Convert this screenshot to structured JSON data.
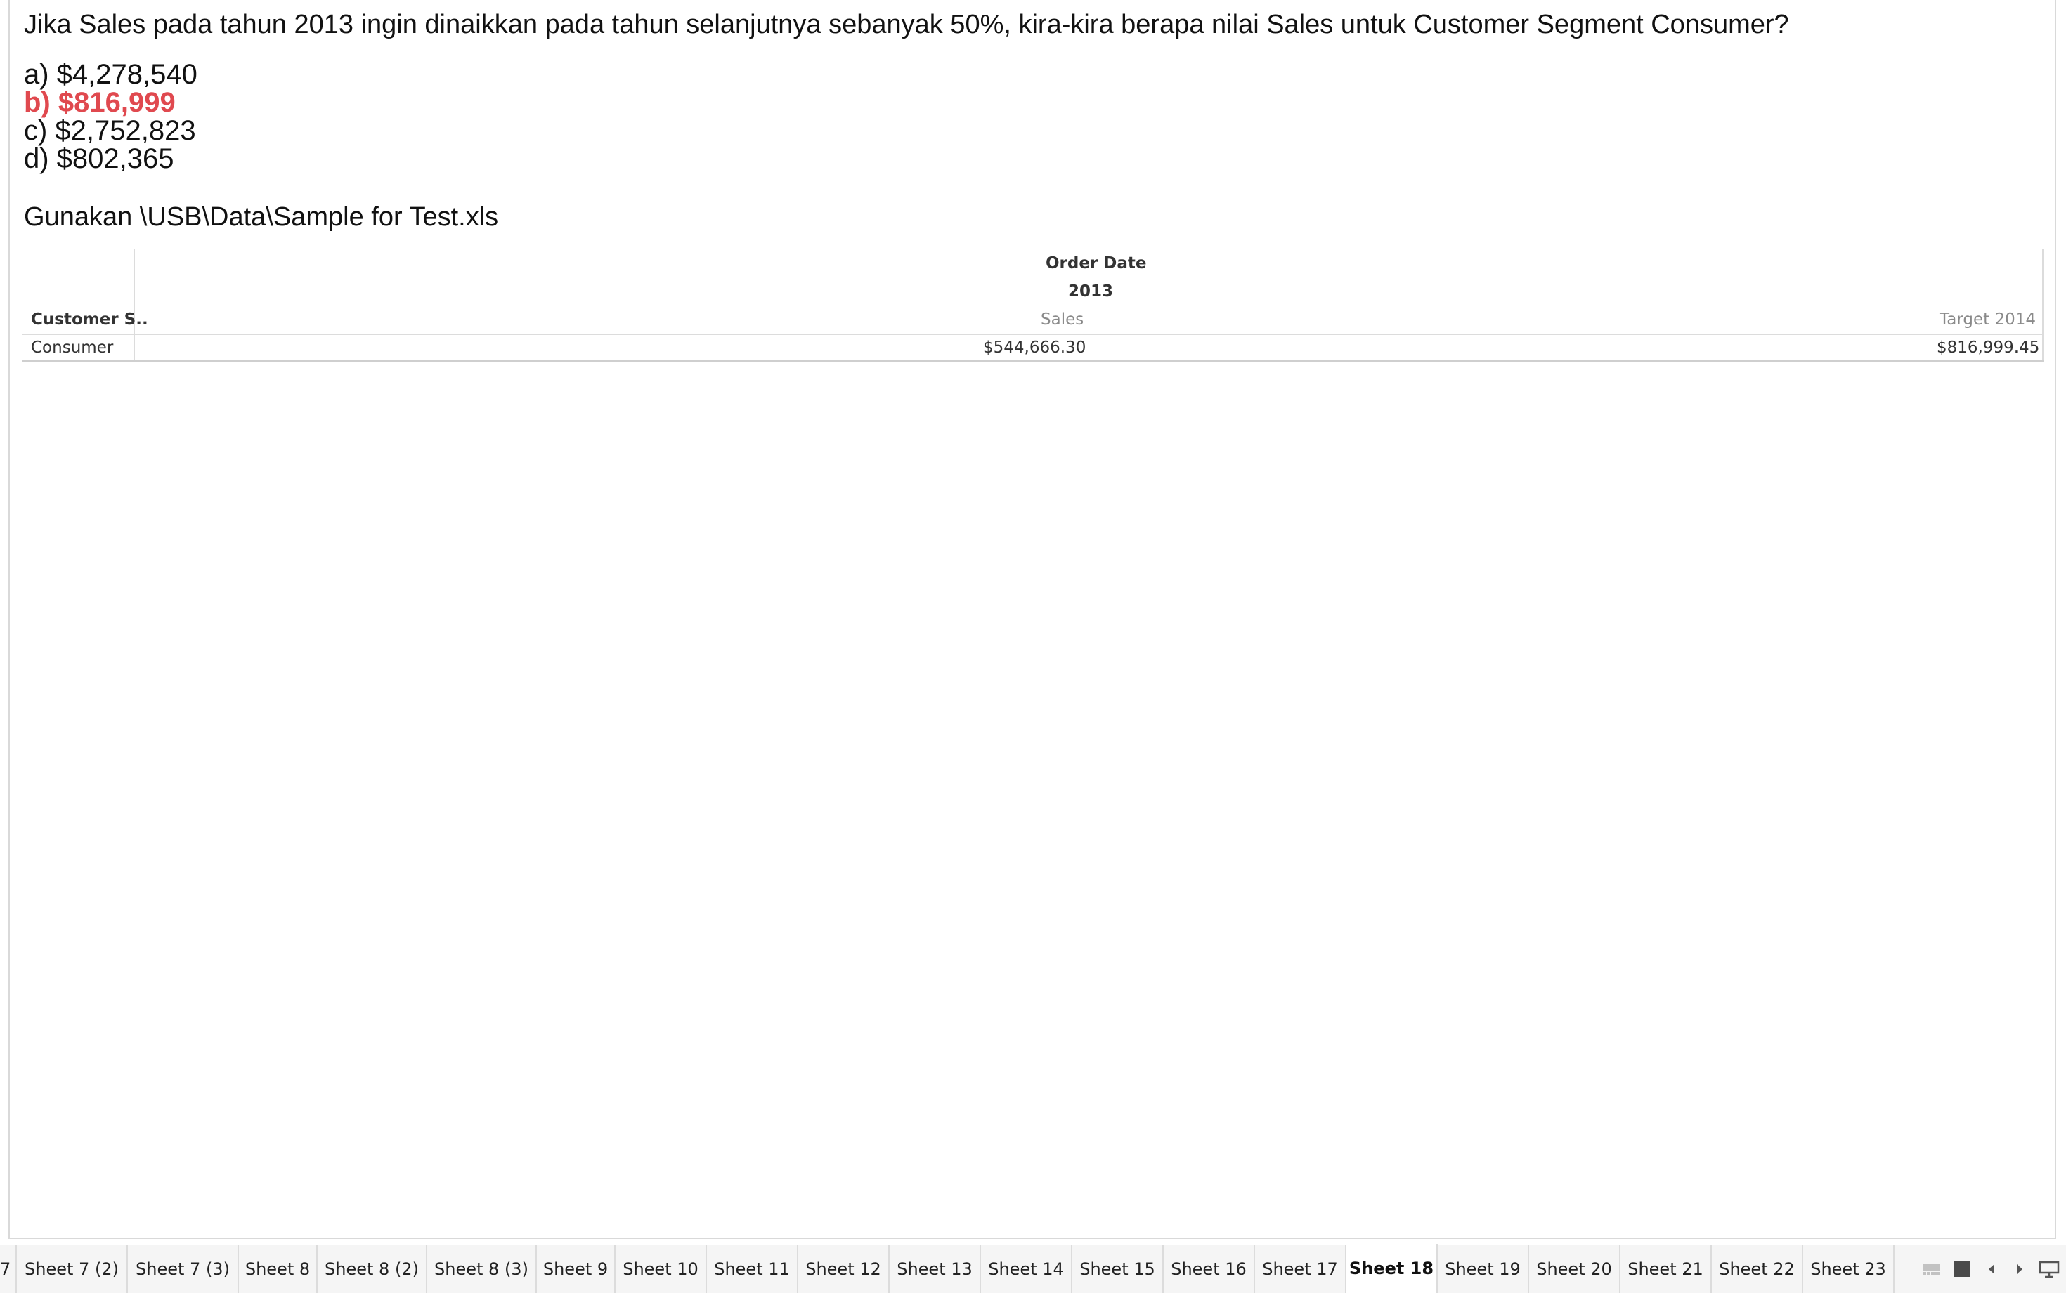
{
  "question": {
    "text": "Jika Sales pada tahun 2013 ingin dinaikkan pada tahun selanjutnya sebanyak 50%, kira-kira berapa nilai Sales untuk Customer Segment Consumer?",
    "options": [
      "a) $4,278,540",
      "b) $816,999",
      "c) $2,752,823",
      "d) $802,365"
    ],
    "correct_option_index": 1,
    "correct_color": "#e0494f",
    "source": "Gunakan \\USB\\Data\\Sample for Test.xls"
  },
  "crosstab": {
    "column_header": "Order Date",
    "year": "2013",
    "row_header": "Customer S..",
    "measures": [
      "Sales",
      "Target 2014"
    ],
    "rows": [
      {
        "segment": "Consumer",
        "sales": "$544,666.30",
        "target": "$816,999.45"
      }
    ]
  },
  "tabs": {
    "partial_first": "7",
    "items": [
      "Sheet 7 (2)",
      "Sheet 7 (3)",
      "Sheet 8",
      "Sheet 8 (2)",
      "Sheet 8 (3)",
      "Sheet 9",
      "Sheet 10",
      "Sheet 11",
      "Sheet 12",
      "Sheet 13",
      "Sheet 14",
      "Sheet 15",
      "Sheet 16",
      "Sheet 17",
      "Sheet 18",
      "Sheet 19",
      "Sheet 20",
      "Sheet 21",
      "Sheet 22",
      "Sheet 23"
    ],
    "active": "Sheet 18",
    "icons": [
      "filmstrip-icon",
      "single-sheet-icon",
      "scroll-left-icon",
      "scroll-right-icon",
      "presentation-mode-icon"
    ]
  }
}
